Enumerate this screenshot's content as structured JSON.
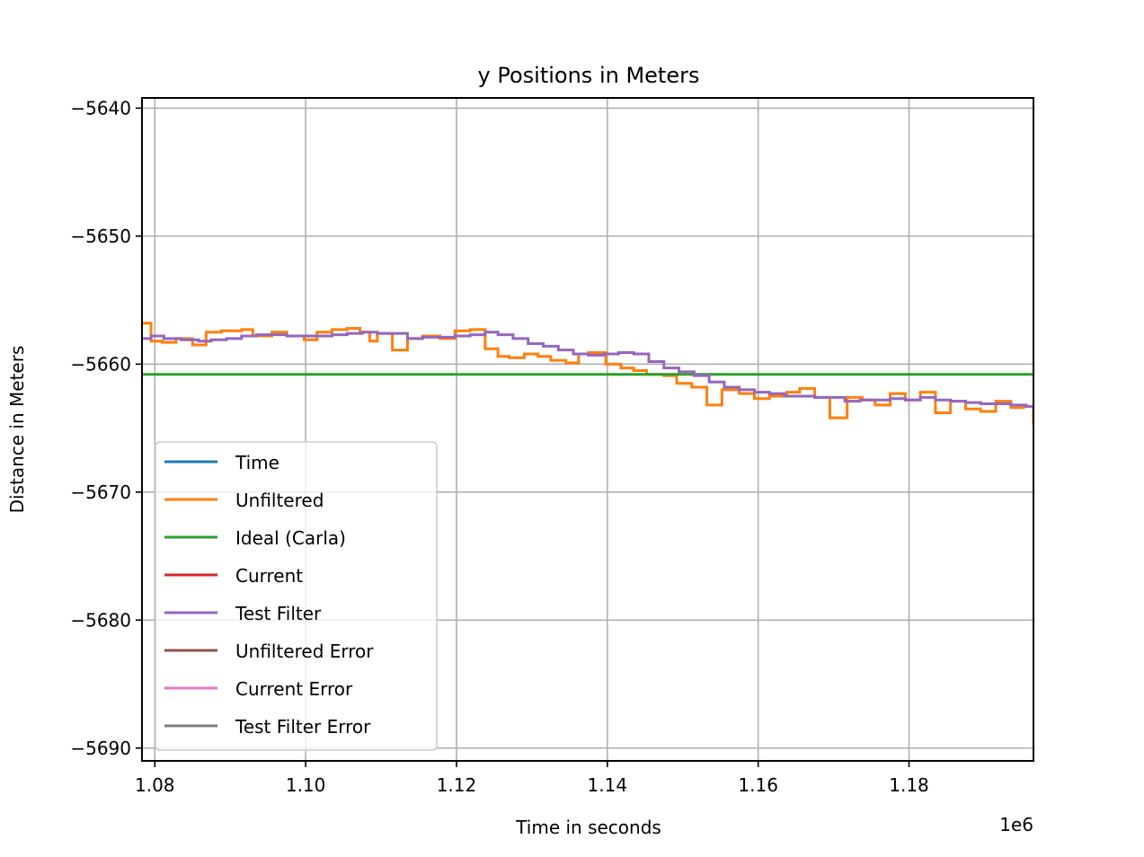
{
  "chart_data": {
    "type": "line",
    "title": "y Positions in Meters",
    "xlabel": "Time in seconds",
    "ylabel": "Distance in Meters",
    "x_offset_label": "1e6",
    "xlim": [
      1.0783,
      1.1965
    ],
    "ylim": [
      -5691,
      -5639.2
    ],
    "x_ticks": [
      1.08,
      1.1,
      1.12,
      1.14,
      1.16,
      1.18
    ],
    "x_tick_labels": [
      "1.08",
      "1.10",
      "1.12",
      "1.14",
      "1.16",
      "1.18"
    ],
    "y_ticks": [
      -5640,
      -5650,
      -5660,
      -5670,
      -5680,
      -5690
    ],
    "y_tick_labels": [
      "−5640",
      "−5650",
      "−5660",
      "−5670",
      "−5680",
      "−5690"
    ],
    "grid": true,
    "legend_position": "lower-left",
    "series": [
      {
        "name": "Time",
        "color": "#1f77b4",
        "x": [],
        "y": []
      },
      {
        "name": "Unfiltered",
        "color": "#ff7f0e",
        "x": [
          1.0783,
          1.0795,
          1.081,
          1.0828,
          1.085,
          1.0868,
          1.0888,
          1.0915,
          1.093,
          1.0955,
          1.0975,
          1.0998,
          1.1015,
          1.1035,
          1.1055,
          1.1072,
          1.1085,
          1.1095,
          1.1115,
          1.1135,
          1.1155,
          1.1178,
          1.1198,
          1.1218,
          1.1238,
          1.1255,
          1.127,
          1.129,
          1.1308,
          1.1325,
          1.1345,
          1.1362,
          1.1375,
          1.1398,
          1.1418,
          1.1435,
          1.1452,
          1.1475,
          1.1492,
          1.1512,
          1.1532,
          1.1552,
          1.1575,
          1.1595,
          1.1615,
          1.1638,
          1.1655,
          1.1675,
          1.1695,
          1.1718,
          1.1738,
          1.1755,
          1.1775,
          1.1795,
          1.1815,
          1.1835,
          1.1855,
          1.1875,
          1.1895,
          1.1915,
          1.1935,
          1.1952,
          1.1965
        ],
        "y": [
          -5656.8,
          -5658.2,
          -5658.3,
          -5658.0,
          -5658.5,
          -5657.5,
          -5657.4,
          -5657.3,
          -5657.8,
          -5657.5,
          -5657.8,
          -5658.1,
          -5657.5,
          -5657.3,
          -5657.2,
          -5657.5,
          -5658.2,
          -5657.6,
          -5658.9,
          -5658.0,
          -5657.8,
          -5658.0,
          -5657.4,
          -5657.3,
          -5658.8,
          -5659.4,
          -5659.5,
          -5659.2,
          -5659.4,
          -5659.7,
          -5659.9,
          -5659.2,
          -5659.1,
          -5660.0,
          -5660.3,
          -5660.5,
          -5660.8,
          -5660.9,
          -5661.5,
          -5661.8,
          -5663.2,
          -5662.0,
          -5662.3,
          -5662.7,
          -5662.5,
          -5662.2,
          -5661.9,
          -5662.6,
          -5664.2,
          -5662.6,
          -5662.8,
          -5663.2,
          -5662.3,
          -5662.8,
          -5662.2,
          -5663.8,
          -5662.9,
          -5663.5,
          -5663.7,
          -5662.9,
          -5663.4,
          -5663.3,
          -5664.8
        ]
      },
      {
        "name": "Ideal (Carla)",
        "color": "#2ca02c",
        "x": [
          1.0783,
          1.1965
        ],
        "y": [
          -5660.8,
          -5660.8
        ]
      },
      {
        "name": "Current",
        "color": "#d62728",
        "x": [],
        "y": []
      },
      {
        "name": "Test Filter",
        "color": "#9467bd",
        "x": [
          1.0783,
          1.0795,
          1.0812,
          1.0835,
          1.0858,
          1.0875,
          1.0895,
          1.0915,
          1.0935,
          1.0955,
          1.0975,
          1.0998,
          1.1015,
          1.1035,
          1.1055,
          1.1075,
          1.1095,
          1.1115,
          1.1135,
          1.1155,
          1.1175,
          1.1198,
          1.1218,
          1.1238,
          1.1255,
          1.1275,
          1.1295,
          1.1315,
          1.1335,
          1.1355,
          1.1375,
          1.1395,
          1.1415,
          1.1435,
          1.1455,
          1.1475,
          1.1495,
          1.1515,
          1.1535,
          1.1555,
          1.1575,
          1.1595,
          1.1615,
          1.1635,
          1.1655,
          1.1675,
          1.1695,
          1.1715,
          1.1735,
          1.1755,
          1.1775,
          1.1795,
          1.1815,
          1.1835,
          1.1855,
          1.1875,
          1.1895,
          1.1915,
          1.1935,
          1.1955,
          1.1965
        ],
        "y": [
          -5658.0,
          -5657.8,
          -5658.0,
          -5658.1,
          -5658.2,
          -5658.1,
          -5658.0,
          -5657.8,
          -5657.7,
          -5657.7,
          -5657.8,
          -5657.8,
          -5657.8,
          -5657.7,
          -5657.6,
          -5657.5,
          -5657.6,
          -5657.6,
          -5658.0,
          -5657.9,
          -5657.9,
          -5657.8,
          -5657.7,
          -5657.5,
          -5657.7,
          -5658.0,
          -5658.4,
          -5658.6,
          -5658.9,
          -5659.2,
          -5659.3,
          -5659.2,
          -5659.1,
          -5659.2,
          -5659.8,
          -5660.3,
          -5660.6,
          -5660.9,
          -5661.4,
          -5661.8,
          -5662.0,
          -5662.2,
          -5662.3,
          -5662.5,
          -5662.5,
          -5662.6,
          -5662.6,
          -5662.9,
          -5662.8,
          -5662.8,
          -5662.7,
          -5662.8,
          -5662.6,
          -5662.8,
          -5662.9,
          -5663.0,
          -5663.1,
          -5663.1,
          -5663.2,
          -5663.3,
          -5663.5
        ]
      },
      {
        "name": "Unfiltered Error",
        "color": "#8c564b",
        "x": [],
        "y": []
      },
      {
        "name": "Current Error",
        "color": "#e377c2",
        "x": [],
        "y": []
      },
      {
        "name": "Test Filter Error",
        "color": "#7f7f7f",
        "x": [],
        "y": []
      }
    ]
  }
}
